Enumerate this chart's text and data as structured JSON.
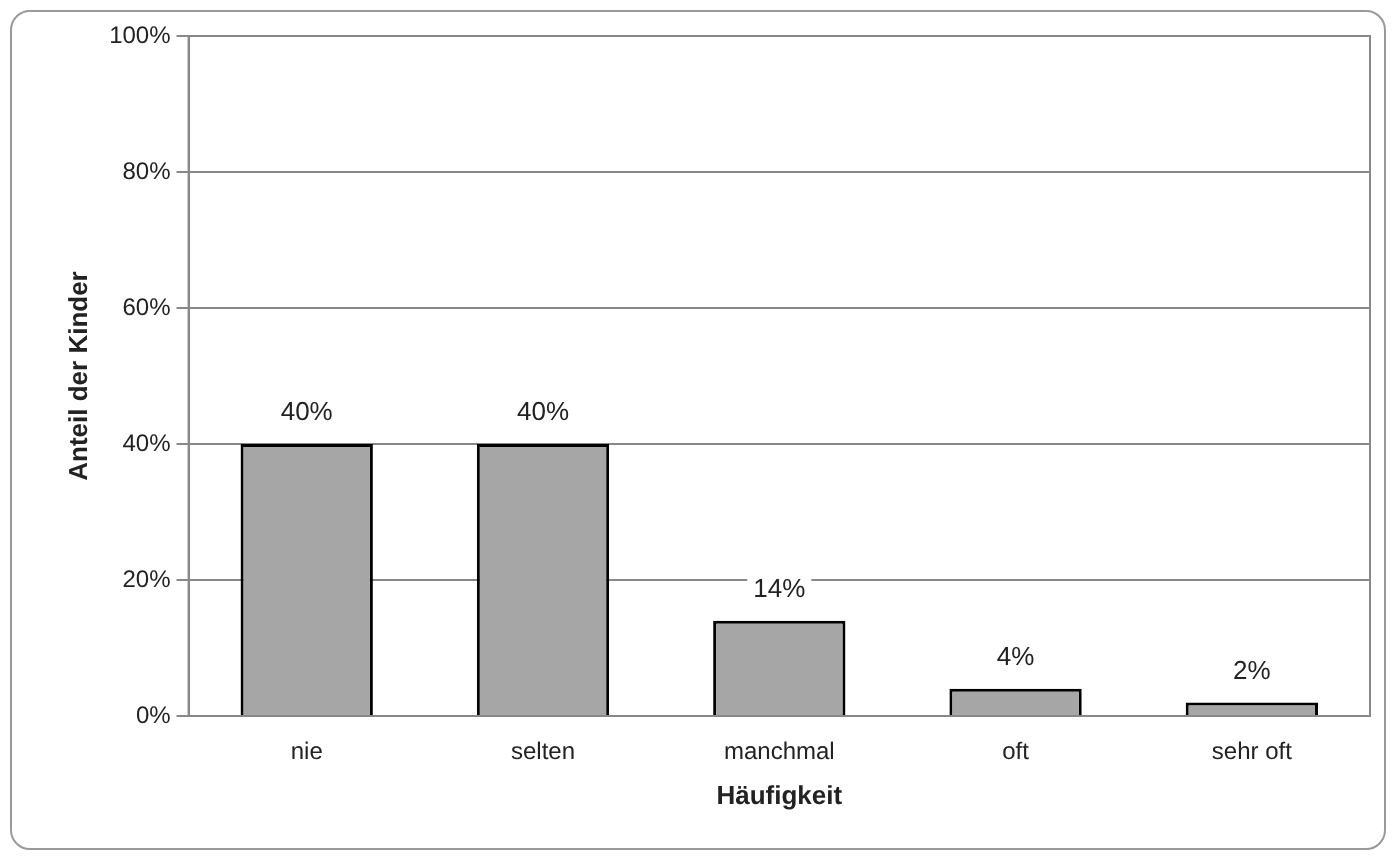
{
  "chart_data": {
    "type": "bar",
    "xlabel": "Häufigkeit",
    "ylabel": "Anteil der Kinder",
    "categories": [
      "nie",
      "selten",
      "manchmal",
      "oft",
      "sehr oft"
    ],
    "values": [
      40,
      40,
      14,
      4,
      2
    ],
    "color": "#a6a6a6",
    "value_labels": [
      "40%",
      "40%",
      "14%",
      "4%",
      "2%"
    ],
    "ylim": [
      0,
      100
    ],
    "yticks": [
      {
        "value": 0,
        "label": "0%"
      },
      {
        "value": 20,
        "label": "20%"
      },
      {
        "value": 40,
        "label": "40%"
      },
      {
        "value": 60,
        "label": "60%"
      },
      {
        "value": 80,
        "label": "80%"
      },
      {
        "value": 100,
        "label": "100%"
      }
    ],
    "grid": "y",
    "legend": false
  }
}
